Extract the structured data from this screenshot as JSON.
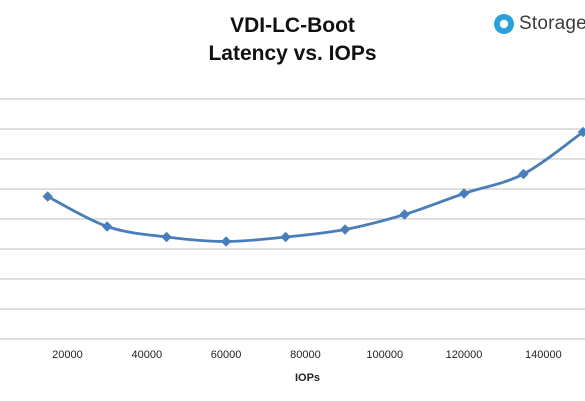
{
  "brand": {
    "name": "Storage",
    "icon": "storage-review-logo-icon",
    "color": "#2aa1d8"
  },
  "chart_data": {
    "type": "line",
    "title_line1": "VDI-LC-Boot",
    "title_line2": "Latency vs. IOPs",
    "xlabel": "IOPs",
    "ylabel": "",
    "xlim": [
      5000,
      150000
    ],
    "x_ticks": [
      20000,
      40000,
      60000,
      80000,
      100000,
      120000,
      140000
    ],
    "ylim": [
      0,
      1.7
    ],
    "y_gridlines": [
      0.2,
      0.4,
      0.6,
      0.8,
      1.0,
      1.2,
      1.4,
      1.6
    ],
    "y_tick_labels_visible": false,
    "grid": true,
    "series": [
      {
        "color": "#4a7ebb",
        "marker": "diamond",
        "x": [
          15000,
          30000,
          45000,
          60000,
          75000,
          90000,
          105000,
          120000,
          135000,
          150000
        ],
        "y": [
          0.95,
          0.75,
          0.68,
          0.65,
          0.68,
          0.73,
          0.83,
          0.97,
          1.1,
          1.38
        ]
      }
    ]
  }
}
